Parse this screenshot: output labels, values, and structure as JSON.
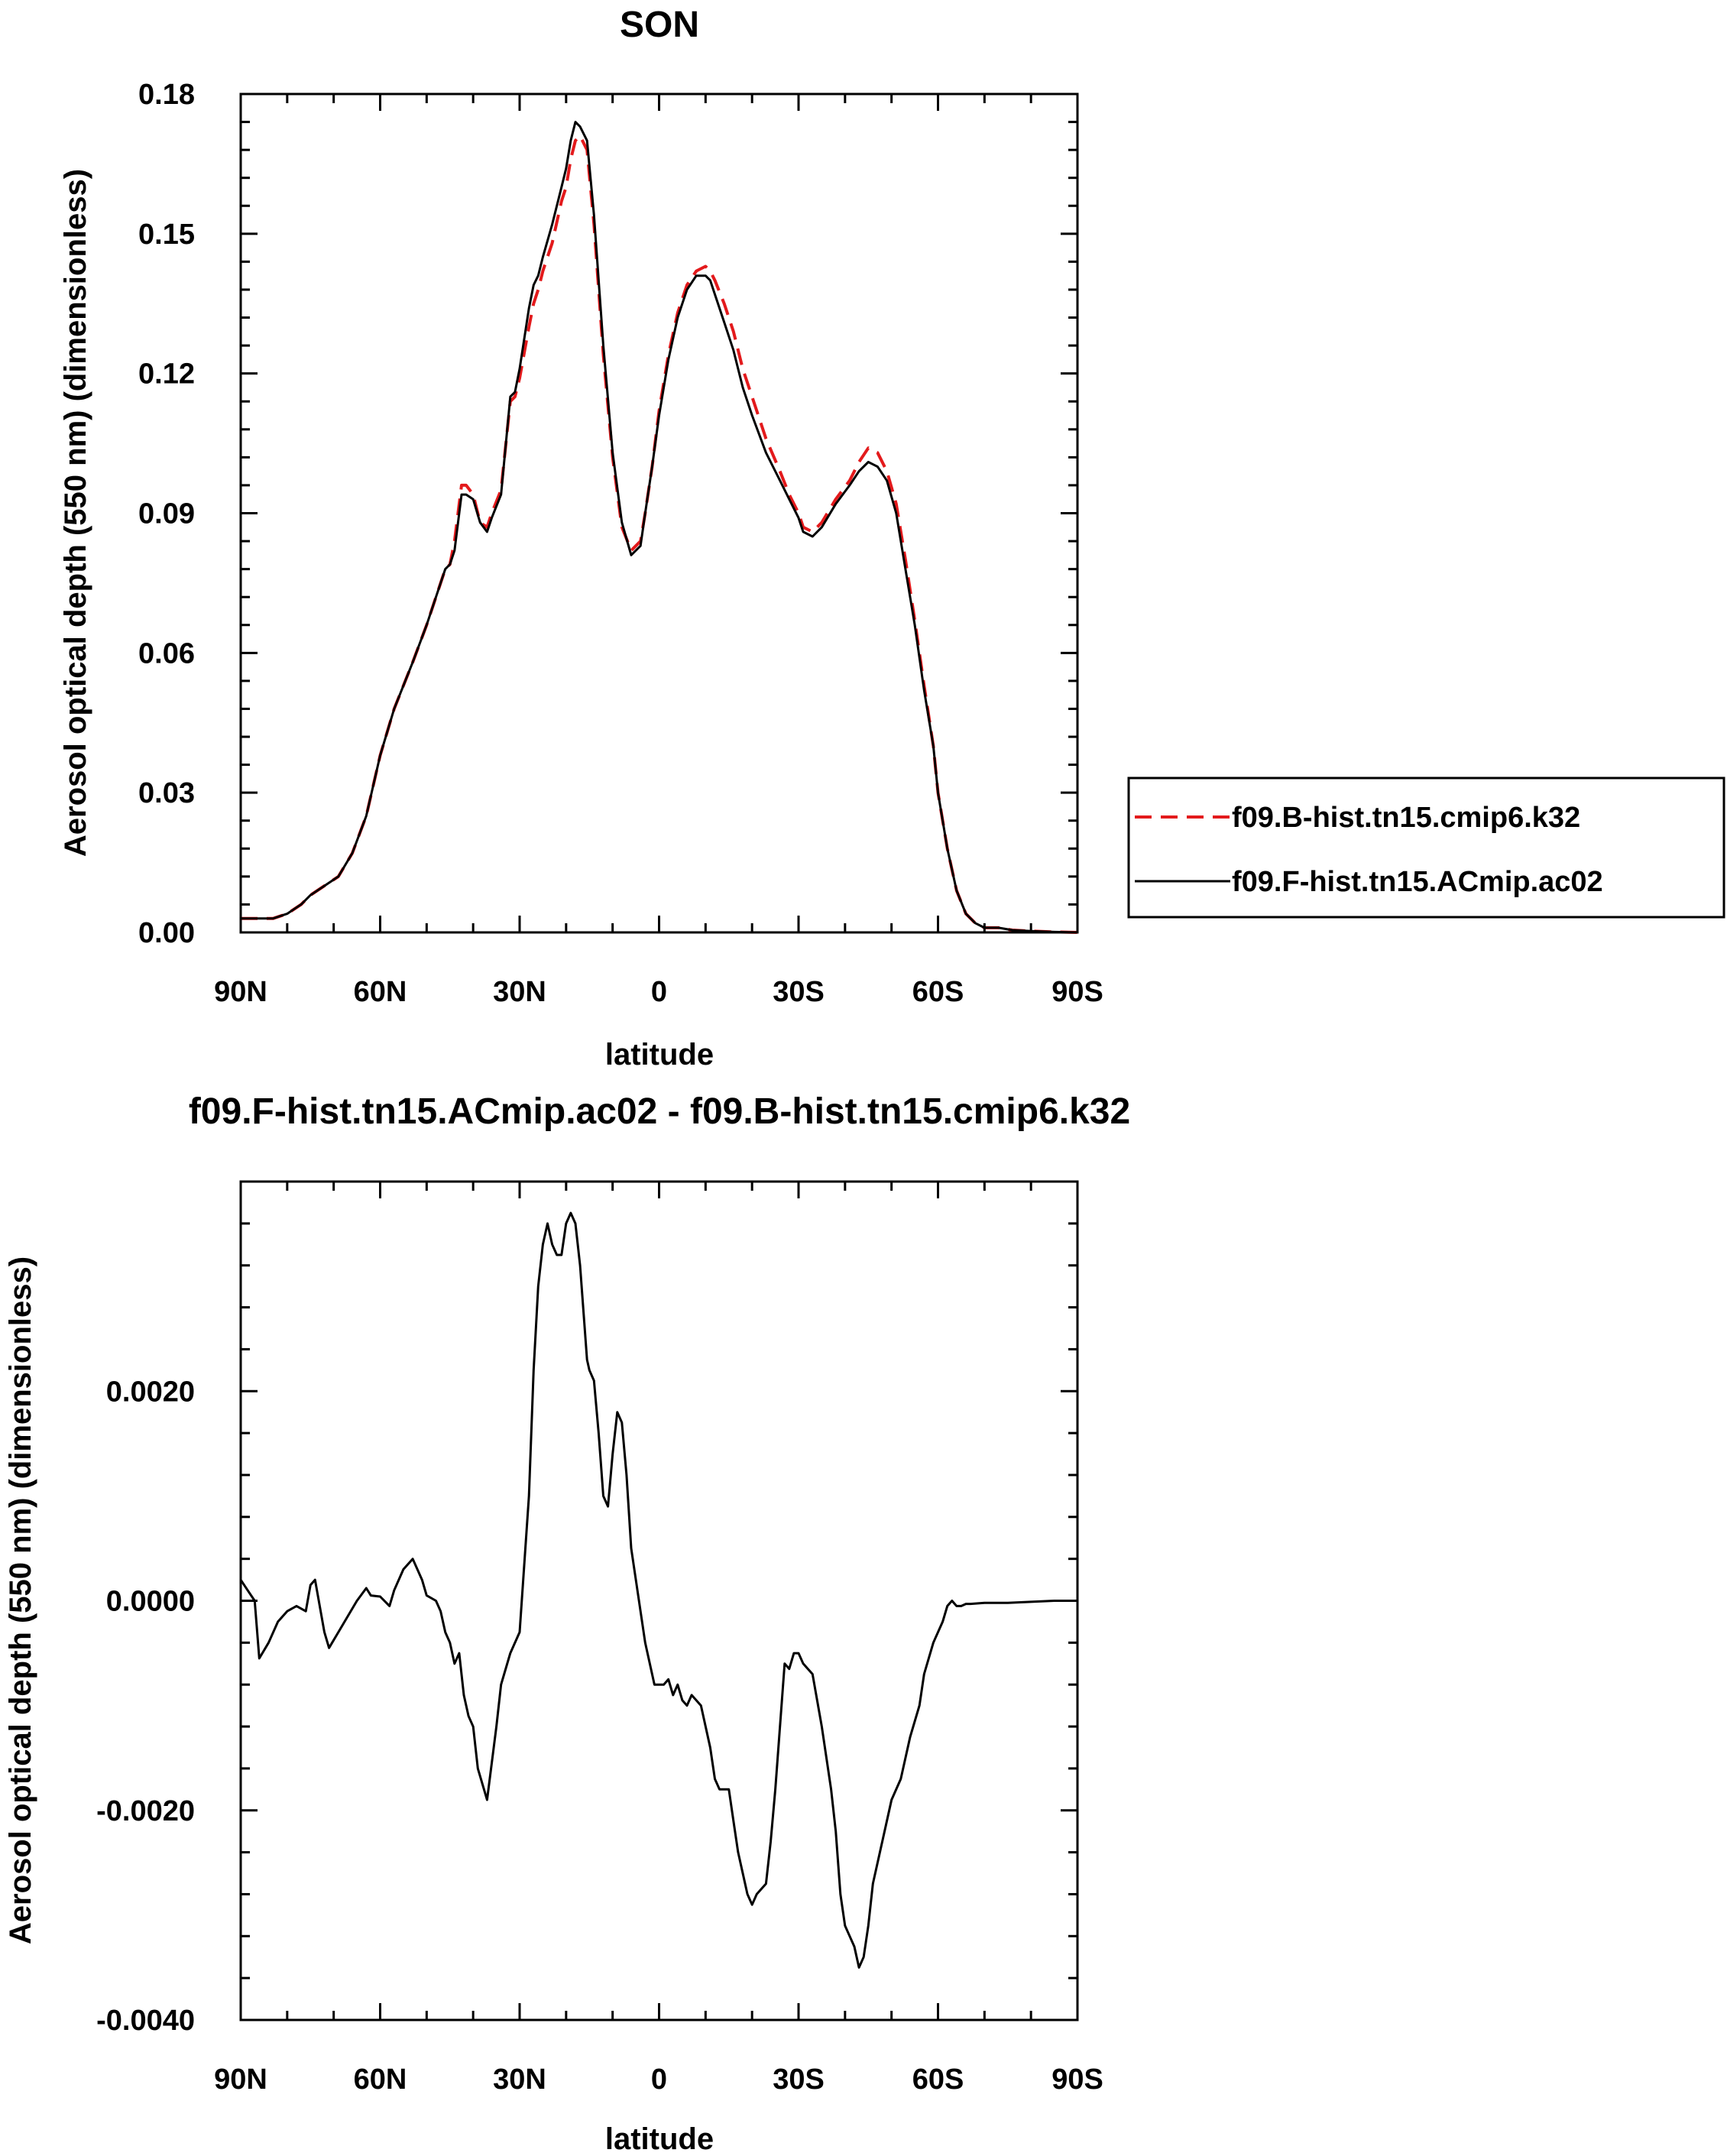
{
  "colors": {
    "series_a": "#e31a1c",
    "series_b": "#000000",
    "axes": "#000000"
  },
  "chart_data": [
    {
      "type": "line",
      "title": "SON",
      "xlabel": "latitude",
      "ylabel": "Aerosol optical depth (550 nm) (dimensionless)",
      "xlim": [
        90,
        -90
      ],
      "ylim": [
        0,
        0.18
      ],
      "xticks": [
        {
          "v": 90,
          "label": "90N"
        },
        {
          "v": 60,
          "label": "60N"
        },
        {
          "v": 30,
          "label": "30N"
        },
        {
          "v": 0,
          "label": "0"
        },
        {
          "v": -30,
          "label": "30S"
        },
        {
          "v": -60,
          "label": "60S"
        },
        {
          "v": -90,
          "label": "90S"
        }
      ],
      "yticks": [
        {
          "v": 0,
          "label": "0.00"
        },
        {
          "v": 0.03,
          "label": "0.03"
        },
        {
          "v": 0.06,
          "label": "0.06"
        },
        {
          "v": 0.09,
          "label": "0.09"
        },
        {
          "v": 0.12,
          "label": "0.12"
        },
        {
          "v": 0.15,
          "label": "0.15"
        },
        {
          "v": 0.18,
          "label": "0.18"
        }
      ],
      "legend": {
        "placement": "right"
      },
      "series": [
        {
          "name": "f09.B-hist.tn15.cmip6.k32",
          "style": "dashed",
          "color": "#e31a1c",
          "x": [
            90,
            86,
            83,
            80,
            77,
            75,
            72,
            69,
            66,
            63,
            60,
            57,
            53,
            50,
            48,
            46,
            45,
            44,
            42.5,
            41.5,
            40,
            38.5,
            37,
            36,
            34,
            32,
            31,
            30,
            28,
            27,
            26,
            25,
            23,
            21,
            20,
            19,
            18,
            17,
            15.5,
            14,
            12,
            10,
            8,
            6,
            4,
            3,
            1.5,
            0,
            -2,
            -4,
            -6,
            -8,
            -10,
            -11,
            -12,
            -14,
            -16,
            -18,
            -20,
            -23,
            -26,
            -28,
            -30,
            -31,
            -33,
            -35,
            -38,
            -41,
            -43,
            -45,
            -47,
            -49,
            -51,
            -53,
            -55,
            -57,
            -59,
            -60,
            -62,
            -64,
            -66,
            -68,
            -70,
            -73,
            -76,
            -80,
            -85,
            -90
          ],
          "y": [
            0.003,
            0.003,
            0.003,
            0.004,
            0.006,
            0.008,
            0.01,
            0.012,
            0.017,
            0.025,
            0.038,
            0.048,
            0.058,
            0.066,
            0.072,
            0.078,
            0.079,
            0.084,
            0.096,
            0.096,
            0.094,
            0.088,
            0.087,
            0.09,
            0.095,
            0.114,
            0.115,
            0.119,
            0.13,
            0.135,
            0.138,
            0.142,
            0.148,
            0.157,
            0.16,
            0.166,
            0.17,
            0.171,
            0.168,
            0.152,
            0.124,
            0.102,
            0.087,
            0.082,
            0.084,
            0.09,
            0.1,
            0.112,
            0.124,
            0.133,
            0.139,
            0.142,
            0.143,
            0.142,
            0.14,
            0.135,
            0.129,
            0.121,
            0.115,
            0.106,
            0.099,
            0.094,
            0.09,
            0.087,
            0.086,
            0.088,
            0.093,
            0.097,
            0.101,
            0.104,
            0.103,
            0.099,
            0.092,
            0.08,
            0.067,
            0.053,
            0.04,
            0.03,
            0.018,
            0.009,
            0.004,
            0.002,
            0.001,
            0.001,
            0.0005,
            0.0003,
            0.0001,
            0.0
          ]
        },
        {
          "name": "f09.F-hist.tn15.ACmip.ac02",
          "style": "solid",
          "color": "#000000",
          "x": [
            90,
            86,
            83,
            80,
            77,
            75,
            72,
            69,
            66,
            63,
            60,
            57,
            53,
            50,
            48,
            46,
            45,
            44,
            42.5,
            41.5,
            40,
            38.5,
            37,
            36,
            34,
            32,
            31,
            30,
            28,
            27,
            26,
            25,
            23,
            21,
            20,
            19,
            18,
            17,
            15.5,
            14,
            12,
            10,
            8,
            6,
            4,
            3,
            1.5,
            0,
            -2,
            -4,
            -6,
            -8,
            -10,
            -11,
            -12,
            -14,
            -16,
            -18,
            -20,
            -23,
            -26,
            -28,
            -30,
            -31,
            -33,
            -35,
            -38,
            -41,
            -43,
            -45,
            -47,
            -49,
            -51,
            -53,
            -55,
            -57,
            -59,
            -60,
            -62,
            -64,
            -66,
            -68,
            -70,
            -73,
            -76,
            -80,
            -85,
            -90
          ],
          "y": [
            0.003,
            0.003,
            0.003,
            0.004,
            0.006,
            0.008,
            0.01,
            0.012,
            0.017,
            0.025,
            0.038,
            0.048,
            0.058,
            0.066,
            0.072,
            0.078,
            0.079,
            0.082,
            0.094,
            0.094,
            0.093,
            0.088,
            0.086,
            0.089,
            0.094,
            0.115,
            0.116,
            0.121,
            0.134,
            0.139,
            0.141,
            0.145,
            0.152,
            0.16,
            0.164,
            0.17,
            0.174,
            0.173,
            0.17,
            0.154,
            0.126,
            0.103,
            0.088,
            0.081,
            0.083,
            0.09,
            0.1,
            0.111,
            0.123,
            0.132,
            0.138,
            0.141,
            0.141,
            0.14,
            0.137,
            0.131,
            0.125,
            0.117,
            0.111,
            0.103,
            0.097,
            0.093,
            0.089,
            0.086,
            0.085,
            0.087,
            0.092,
            0.096,
            0.099,
            0.101,
            0.1,
            0.097,
            0.09,
            0.078,
            0.066,
            0.052,
            0.04,
            0.03,
            0.018,
            0.009,
            0.004,
            0.002,
            0.001,
            0.001,
            0.0005,
            0.0003,
            0.0001,
            0.0
          ]
        }
      ]
    },
    {
      "type": "line",
      "title": "f09.F-hist.tn15.ACmip.ac02 - f09.B-hist.tn15.cmip6.k32",
      "xlabel": "latitude",
      "ylabel": "Aerosol optical depth (550 nm) (dimensionless)",
      "xlim": [
        90,
        -90
      ],
      "ylim": [
        -0.004,
        0.004
      ],
      "xticks": [
        {
          "v": 90,
          "label": "90N"
        },
        {
          "v": 60,
          "label": "60N"
        },
        {
          "v": 30,
          "label": "30N"
        },
        {
          "v": 0,
          "label": "0"
        },
        {
          "v": -30,
          "label": "30S"
        },
        {
          "v": -60,
          "label": "60S"
        },
        {
          "v": -90,
          "label": "90S"
        }
      ],
      "yticks": [
        {
          "v": -0.004,
          "label": "-0.0040"
        },
        {
          "v": -0.002,
          "label": "-0.0020"
        },
        {
          "v": 0.0,
          "label": "0.0000"
        },
        {
          "v": 0.002,
          "label": "0.0020"
        }
      ],
      "series": [
        {
          "name": "",
          "style": "solid",
          "color": "#000000",
          "x": [
            90,
            88.5,
            87,
            86,
            84,
            82,
            80,
            78,
            76,
            75,
            74,
            72,
            71,
            69,
            67,
            65,
            63,
            62,
            60,
            58,
            57,
            55,
            53,
            51,
            50,
            48,
            47,
            46,
            45,
            44,
            43,
            42,
            41,
            40,
            39,
            37,
            35,
            34,
            32,
            30,
            28,
            27,
            26,
            25,
            24,
            23,
            22,
            21,
            20,
            19,
            18,
            17,
            15.5,
            15,
            14,
            13,
            12,
            11,
            10,
            9,
            8,
            7,
            6,
            4,
            3,
            1,
            0,
            -1,
            -2,
            -3,
            -4,
            -5,
            -6,
            -7,
            -9,
            -11,
            -12,
            -13,
            -15,
            -16,
            -17,
            -18,
            -19,
            -20,
            -21,
            -23,
            -24,
            -25,
            -27,
            -28,
            -29,
            -30,
            -31,
            -33,
            -35,
            -37,
            -38,
            -39,
            -40,
            -41,
            -42,
            -43,
            -44,
            -45,
            -46,
            -47,
            -48,
            -49,
            -50,
            -52,
            -54,
            -56,
            -57,
            -59,
            -61,
            -62,
            -63,
            -64,
            -65,
            -66,
            -67,
            -70,
            -75,
            -80,
            -85,
            -90
          ],
          "y": [
            0.0002,
            0.0001,
            0.0,
            -0.00055,
            -0.0004,
            -0.0002,
            -0.0001,
            -5e-05,
            -0.0001,
            0.00015,
            0.0002,
            -0.0003,
            -0.00045,
            -0.0003,
            -0.00015,
            0.0,
            0.00012,
            5e-05,
            4e-05,
            -5e-05,
            0.0001,
            0.0003,
            0.0004,
            0.0002,
            5e-05,
            0.0,
            -0.0001,
            -0.0003,
            -0.0004,
            -0.0006,
            -0.0005,
            -0.0009,
            -0.0011,
            -0.0012,
            -0.0016,
            -0.0019,
            -0.0012,
            -0.0008,
            -0.0005,
            -0.0003,
            0.001,
            0.0022,
            0.003,
            0.0034,
            0.0036,
            0.0034,
            0.0033,
            0.0033,
            0.0036,
            0.0037,
            0.0036,
            0.0032,
            0.0023,
            0.0022,
            0.0021,
            0.0016,
            0.001,
            0.0009,
            0.0014,
            0.0018,
            0.0017,
            0.0012,
            0.0005,
            -0.0001,
            -0.0004,
            -0.0008,
            -0.0008,
            -0.0008,
            -0.00075,
            -0.0009,
            -0.0008,
            -0.00095,
            -0.001,
            -0.0009,
            -0.001,
            -0.0014,
            -0.0017,
            -0.0018,
            -0.0018,
            -0.0021,
            -0.0024,
            -0.0026,
            -0.0028,
            -0.0029,
            -0.0028,
            -0.0027,
            -0.0023,
            -0.0018,
            -0.0006,
            -0.00065,
            -0.0005,
            -0.0005,
            -0.0006,
            -0.0007,
            -0.0012,
            -0.0018,
            -0.0022,
            -0.0028,
            -0.0031,
            -0.0032,
            -0.0033,
            -0.0035,
            -0.0034,
            -0.0031,
            -0.0027,
            -0.0025,
            -0.0023,
            -0.0021,
            -0.0019,
            -0.0017,
            -0.0013,
            -0.001,
            -0.0007,
            -0.0004,
            -0.0002,
            -5e-05,
            0.0,
            -5e-05,
            -5e-05,
            -3e-05,
            -3e-05,
            -2e-05,
            -2e-05,
            -1e-05,
            0.0,
            0.0
          ]
        }
      ]
    }
  ]
}
